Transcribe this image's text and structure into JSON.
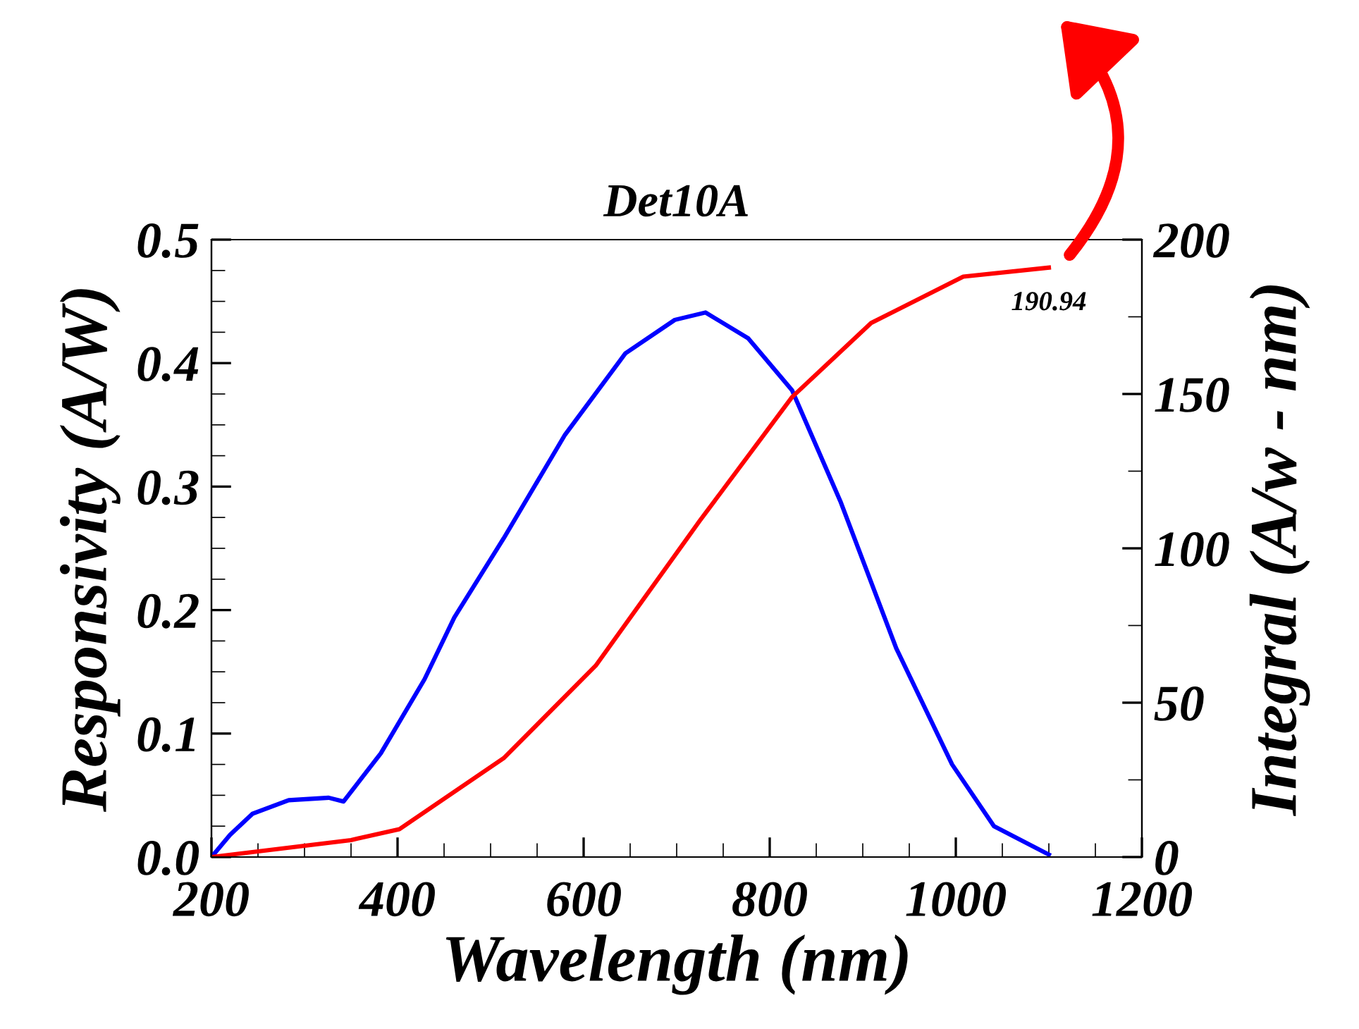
{
  "chart_data": {
    "type": "line",
    "title": "Det10A",
    "xlabel": "Wavelength (nm)",
    "ylabel": "Responsivity (A/W)",
    "y2label": "Integral (A/w - nm)",
    "xlim": [
      200,
      1200
    ],
    "xticks": [
      200,
      400,
      600,
      800,
      1000,
      1200
    ],
    "ylim": [
      0,
      0.5
    ],
    "yticks": [
      {
        "value": 0,
        "label": "0.0"
      },
      0.1,
      0.2,
      0.3,
      0.4,
      0.5
    ],
    "y2lim": [
      0,
      200
    ],
    "y2ticks": [
      0,
      50,
      100,
      150,
      200
    ],
    "marker": "none",
    "line_style": "solid",
    "series": [
      {
        "color": "#0000ff",
        "x": [
          200,
          220,
          244,
          283,
          326,
          342,
          382,
          429,
          461,
          514,
          580,
          645,
          698,
          731,
          777,
          824,
          876,
          936,
          996,
          1041,
          1100
        ],
        "values": [
          0,
          0.018,
          0.035,
          0.046,
          0.048,
          0.045,
          0.084,
          0.144,
          0.194,
          0.258,
          0.342,
          0.408,
          0.435,
          0.441,
          0.42,
          0.378,
          0.288,
          0.169,
          0.075,
          0.025,
          0.002
        ]
      },
      {
        "color": "#ff0000",
        "axis": "y2",
        "x": [
          200,
          350,
          402,
          514,
          613,
          725,
          824,
          909,
          1008,
          1100
        ],
        "values": [
          0,
          5.5,
          9,
          32,
          62,
          109,
          149,
          173,
          188,
          190.94
        ],
        "value_labels": [
          null,
          null,
          null,
          null,
          null,
          null,
          null,
          null,
          null,
          "190.94"
        ]
      }
    ]
  }
}
